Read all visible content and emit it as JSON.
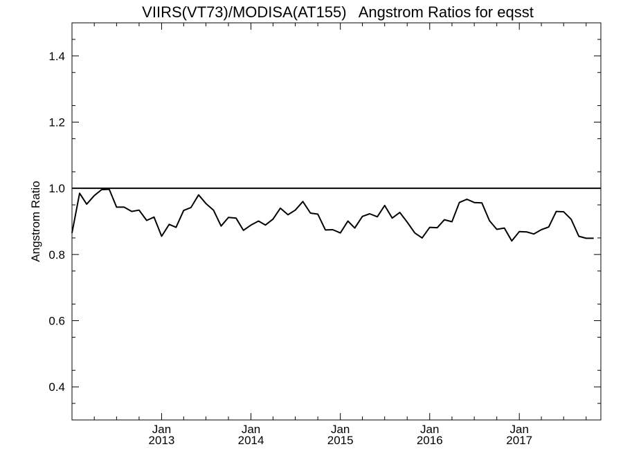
{
  "chart_data": {
    "type": "line",
    "title": "VIIRS(VT73)/MODISA(AT155)   Angstrom Ratios for eqsst",
    "ylabel": "Angstrom Ratio",
    "xlabel": "",
    "ylim": [
      0.3,
      1.5
    ],
    "xlim": [
      "2012-01-01",
      "2017-11-30"
    ],
    "yticks": [
      {
        "value": 0.4,
        "label": "0.4"
      },
      {
        "value": 0.6,
        "label": "0.6"
      },
      {
        "value": 0.8,
        "label": "0.8"
      },
      {
        "value": 1.0,
        "label": "1.0"
      },
      {
        "value": 1.2,
        "label": "1.2"
      },
      {
        "value": 1.4,
        "label": "1.4"
      }
    ],
    "xticks": [
      {
        "date": "2013-01-01",
        "month": "Jan",
        "year": "2013"
      },
      {
        "date": "2014-01-01",
        "month": "Jan",
        "year": "2014"
      },
      {
        "date": "2015-01-01",
        "month": "Jan",
        "year": "2015"
      },
      {
        "date": "2016-01-01",
        "month": "Jan",
        "year": "2016"
      },
      {
        "date": "2017-01-01",
        "month": "Jan",
        "year": "2017"
      }
    ],
    "reference_line": {
      "y": 1.0
    },
    "grid": false,
    "series": [
      {
        "x": [
          "2012-01",
          "2012-02",
          "2012-03",
          "2012-04",
          "2012-05",
          "2012-06",
          "2012-07",
          "2012-08",
          "2012-09",
          "2012-10",
          "2012-11",
          "2012-12",
          "2013-01",
          "2013-02",
          "2013-03",
          "2013-04",
          "2013-05",
          "2013-06",
          "2013-07",
          "2013-08",
          "2013-09",
          "2013-10",
          "2013-11",
          "2013-12",
          "2014-01",
          "2014-02",
          "2014-03",
          "2014-04",
          "2014-05",
          "2014-06",
          "2014-07",
          "2014-08",
          "2014-09",
          "2014-10",
          "2014-11",
          "2014-12",
          "2015-01",
          "2015-02",
          "2015-03",
          "2015-04",
          "2015-05",
          "2015-06",
          "2015-07",
          "2015-08",
          "2015-09",
          "2015-10",
          "2015-11",
          "2015-12",
          "2016-01",
          "2016-02",
          "2016-03",
          "2016-04",
          "2016-05",
          "2016-06",
          "2016-07",
          "2016-08",
          "2016-09",
          "2016-10",
          "2016-11",
          "2016-12",
          "2017-01",
          "2017-02",
          "2017-03",
          "2017-04",
          "2017-05",
          "2017-06",
          "2017-07",
          "2017-08",
          "2017-09",
          "2017-10",
          "2017-11"
        ],
        "values": [
          0.865,
          0.985,
          0.952,
          0.978,
          0.996,
          0.997,
          0.943,
          0.943,
          0.93,
          0.934,
          0.903,
          0.913,
          0.855,
          0.891,
          0.882,
          0.933,
          0.942,
          0.98,
          0.954,
          0.934,
          0.886,
          0.912,
          0.91,
          0.873,
          0.889,
          0.901,
          0.889,
          0.907,
          0.94,
          0.92,
          0.934,
          0.96,
          0.925,
          0.922,
          0.874,
          0.875,
          0.865,
          0.901,
          0.88,
          0.915,
          0.923,
          0.914,
          0.948,
          0.91,
          0.927,
          0.898,
          0.865,
          0.85,
          0.882,
          0.881,
          0.905,
          0.899,
          0.957,
          0.967,
          0.957,
          0.956,
          0.902,
          0.876,
          0.88,
          0.841,
          0.869,
          0.868,
          0.862,
          0.875,
          0.883,
          0.93,
          0.929,
          0.906,
          0.855,
          0.849,
          0.849
        ]
      }
    ]
  }
}
